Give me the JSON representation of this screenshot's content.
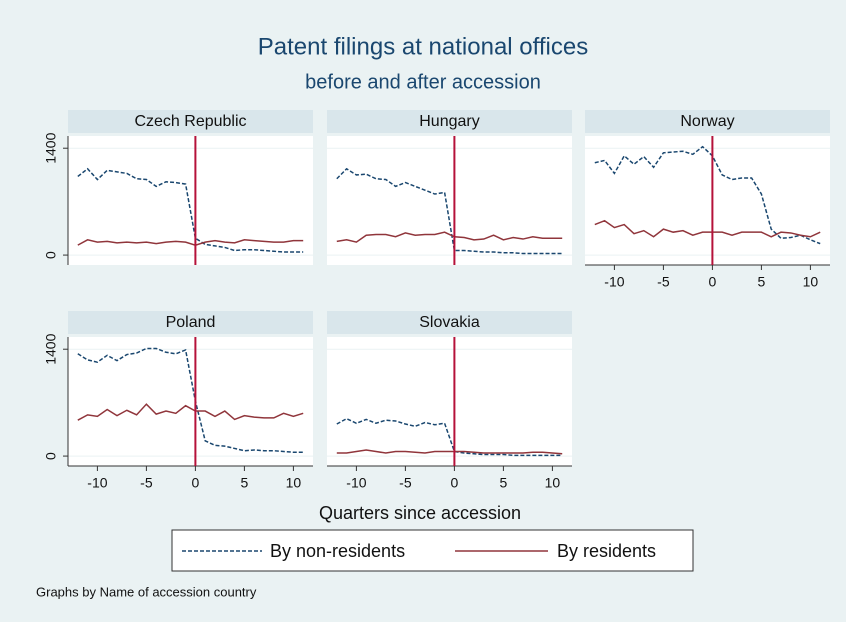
{
  "chart_data": {
    "type": "line",
    "title": "Patent filings at national offices",
    "subtitle": "before and after accession",
    "x_label": "Quarters since accession",
    "note": "Graphs by Name of accession country",
    "x": [
      -12,
      -11,
      -10,
      -9,
      -8,
      -7,
      -6,
      -5,
      -4,
      -3,
      -2,
      -1,
      0,
      1,
      2,
      3,
      4,
      5,
      6,
      7,
      8,
      9,
      10,
      11
    ],
    "xlim": [
      -13,
      12
    ],
    "xticks": [
      -10,
      -5,
      0,
      5,
      10
    ],
    "ylim": [
      -130,
      1560
    ],
    "yticks": [
      0,
      1400
    ],
    "xline": 0,
    "xline_color": "#b5123a",
    "grid": true,
    "series": [
      {
        "name": "By non-residents",
        "color": "#1a476f",
        "dashed": true
      },
      {
        "name": "By residents",
        "color": "#90353b",
        "dashed": false
      }
    ],
    "panels": [
      {
        "title": "Czech Republic",
        "values": [
          [
            1030,
            1130,
            990,
            1110,
            1090,
            1070,
            1000,
            990,
            900,
            960,
            950,
            930,
            220,
            140,
            120,
            100,
            60,
            70,
            70,
            60,
            50,
            40,
            40,
            40
          ],
          [
            130,
            200,
            170,
            180,
            160,
            170,
            160,
            170,
            150,
            170,
            180,
            170,
            130,
            170,
            190,
            170,
            160,
            200,
            190,
            180,
            170,
            170,
            190,
            190
          ]
        ]
      },
      {
        "title": "Hungary",
        "values": [
          [
            1000,
            1130,
            1050,
            1060,
            1000,
            990,
            900,
            950,
            900,
            850,
            800,
            820,
            60,
            60,
            50,
            40,
            40,
            30,
            30,
            20,
            20,
            20,
            20,
            20
          ],
          [
            180,
            200,
            170,
            260,
            270,
            270,
            240,
            290,
            260,
            270,
            270,
            300,
            240,
            230,
            200,
            210,
            260,
            200,
            230,
            210,
            240,
            220,
            220,
            220
          ]
        ]
      },
      {
        "title": "Norway",
        "values": [
          [
            1210,
            1240,
            1070,
            1300,
            1190,
            1290,
            1150,
            1340,
            1350,
            1360,
            1320,
            1420,
            1300,
            1050,
            990,
            1010,
            1010,
            800,
            340,
            220,
            230,
            260,
            200,
            150
          ],
          [
            400,
            450,
            360,
            400,
            280,
            320,
            240,
            340,
            300,
            320,
            260,
            300,
            300,
            300,
            260,
            300,
            300,
            300,
            240,
            300,
            290,
            260,
            240,
            300
          ]
        ]
      },
      {
        "title": "Poland",
        "values": [
          [
            1340,
            1260,
            1230,
            1320,
            1250,
            1330,
            1350,
            1410,
            1410,
            1360,
            1340,
            1390,
            720,
            200,
            140,
            130,
            100,
            70,
            80,
            70,
            70,
            60,
            50,
            50
          ],
          [
            470,
            540,
            520,
            610,
            530,
            600,
            540,
            680,
            550,
            590,
            560,
            660,
            590,
            590,
            520,
            590,
            480,
            530,
            510,
            500,
            500,
            560,
            520,
            560
          ]
        ]
      },
      {
        "title": "Slovakia",
        "values": [
          [
            420,
            490,
            430,
            480,
            430,
            470,
            460,
            420,
            390,
            440,
            410,
            430,
            60,
            40,
            30,
            20,
            20,
            20,
            10,
            10,
            10,
            10,
            10,
            10
          ],
          [
            40,
            40,
            60,
            80,
            60,
            40,
            60,
            60,
            50,
            40,
            60,
            60,
            60,
            60,
            50,
            40,
            40,
            40,
            40,
            40,
            50,
            50,
            40,
            30
          ]
        ]
      }
    ]
  }
}
